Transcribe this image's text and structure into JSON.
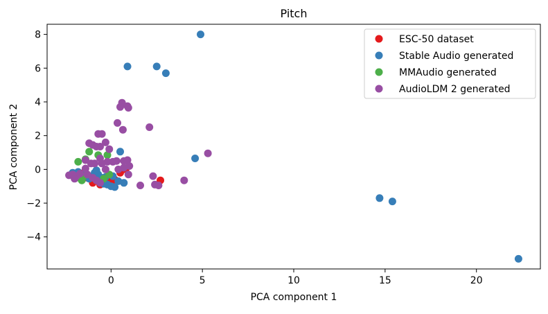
{
  "chart_data": {
    "type": "scatter",
    "title": "Pitch",
    "xlabel": "PCA component 1",
    "ylabel": "PCA component 2",
    "xlim": [
      -3.5,
      23.5
    ],
    "ylim": [
      -5.9,
      8.6
    ],
    "xticks": [
      0,
      5,
      10,
      15,
      20
    ],
    "xtick_labels": [
      "0",
      "5",
      "10",
      "15",
      "20"
    ],
    "yticks": [
      -4,
      -2,
      0,
      2,
      4,
      6,
      8
    ],
    "ytick_labels": [
      "−4",
      "−2",
      "0",
      "2",
      "4",
      "6",
      "8"
    ],
    "grid": false,
    "legend_position": "top-right",
    "series": [
      {
        "name": "ESC-50 dataset",
        "color": "#e41a1c",
        "points": [
          [
            -1.7,
            -0.3
          ],
          [
            -1.3,
            -0.5
          ],
          [
            -1.0,
            -0.8
          ],
          [
            -0.6,
            -0.9
          ],
          [
            -0.3,
            -0.6
          ],
          [
            0.0,
            -0.7
          ],
          [
            0.2,
            -0.6
          ],
          [
            0.5,
            -0.2
          ],
          [
            0.8,
            0.0
          ],
          [
            2.7,
            -0.65
          ],
          [
            -1.5,
            -0.2
          ],
          [
            -0.8,
            -0.5
          ]
        ]
      },
      {
        "name": "Stable Audio generated",
        "color": "#377eb8",
        "points": [
          [
            4.9,
            8.0
          ],
          [
            0.9,
            6.1
          ],
          [
            2.5,
            6.1
          ],
          [
            3.0,
            5.7
          ],
          [
            0.5,
            1.05
          ],
          [
            4.6,
            0.65
          ],
          [
            14.7,
            -1.7
          ],
          [
            15.4,
            -1.9
          ],
          [
            22.3,
            -5.3
          ],
          [
            -2.1,
            -0.2
          ],
          [
            -1.8,
            -0.15
          ],
          [
            -1.6,
            -0.45
          ],
          [
            -1.4,
            -0.3
          ],
          [
            -1.2,
            -0.55
          ],
          [
            -1.0,
            -0.4
          ],
          [
            -0.8,
            -0.6
          ],
          [
            -0.6,
            -0.7
          ],
          [
            -0.4,
            -0.85
          ],
          [
            -0.2,
            -0.9
          ],
          [
            0.0,
            -1.0
          ],
          [
            0.2,
            -1.05
          ],
          [
            0.4,
            -0.7
          ],
          [
            0.7,
            -0.8
          ],
          [
            -0.7,
            -0.3
          ],
          [
            -0.5,
            -0.5
          ],
          [
            -0.3,
            -0.45
          ],
          [
            0.1,
            -0.4
          ],
          [
            -0.9,
            -0.2
          ],
          [
            -0.8,
            -0.05
          ]
        ]
      },
      {
        "name": "MMAudio generated",
        "color": "#4daf4a",
        "points": [
          [
            -1.2,
            1.05
          ],
          [
            -1.8,
            0.45
          ],
          [
            -1.4,
            0.6
          ],
          [
            -0.7,
            0.85
          ],
          [
            -0.2,
            0.85
          ],
          [
            -1.5,
            -0.4
          ],
          [
            -0.1,
            -0.3
          ],
          [
            -1.9,
            -0.5
          ],
          [
            -1.6,
            -0.65
          ],
          [
            -0.4,
            -0.55
          ]
        ]
      },
      {
        "name": "AudioLDM 2 generated",
        "color": "#984ea3",
        "points": [
          [
            0.6,
            3.95
          ],
          [
            0.9,
            3.75
          ],
          [
            0.5,
            3.7
          ],
          [
            0.95,
            3.65
          ],
          [
            0.35,
            2.75
          ],
          [
            0.65,
            2.35
          ],
          [
            2.1,
            2.5
          ],
          [
            -0.7,
            2.1
          ],
          [
            -0.5,
            2.1
          ],
          [
            -1.2,
            1.55
          ],
          [
            -1.0,
            1.45
          ],
          [
            -0.8,
            1.35
          ],
          [
            -0.6,
            1.35
          ],
          [
            -0.3,
            1.6
          ],
          [
            -0.1,
            1.2
          ],
          [
            5.3,
            0.95
          ],
          [
            -1.4,
            0.55
          ],
          [
            -1.1,
            0.35
          ],
          [
            -0.9,
            0.35
          ],
          [
            -0.5,
            0.35
          ],
          [
            -0.2,
            0.45
          ],
          [
            0.1,
            0.45
          ],
          [
            0.3,
            0.5
          ],
          [
            0.7,
            0.5
          ],
          [
            0.9,
            0.55
          ],
          [
            1.0,
            0.2
          ],
          [
            0.7,
            0.1
          ],
          [
            -0.6,
            0.65
          ],
          [
            -1.4,
            0.05
          ],
          [
            -2.3,
            -0.35
          ],
          [
            -2.1,
            -0.3
          ],
          [
            -1.9,
            -0.4
          ],
          [
            -2.0,
            -0.55
          ],
          [
            -1.7,
            -0.25
          ],
          [
            -1.3,
            -0.3
          ],
          [
            -1.0,
            -0.5
          ],
          [
            -0.8,
            -0.65
          ],
          [
            -0.6,
            -0.8
          ],
          [
            0.4,
            0.0
          ],
          [
            0.95,
            -0.3
          ],
          [
            1.6,
            -0.95
          ],
          [
            2.3,
            -0.4
          ],
          [
            2.4,
            -0.9
          ],
          [
            2.6,
            -0.95
          ],
          [
            4.0,
            -0.65
          ],
          [
            -0.3,
            0.0
          ]
        ]
      }
    ]
  }
}
